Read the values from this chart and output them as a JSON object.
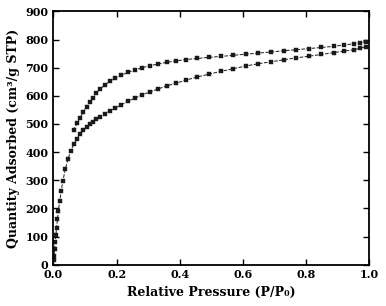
{
  "title": "",
  "xlabel": "Relative Pressure (P/P₀)",
  "ylabel": "Quantity Adsorbed (cm³/g STP)",
  "xlim": [
    0.0,
    1.0
  ],
  "ylim": [
    0,
    900
  ],
  "yticks": [
    0,
    100,
    200,
    300,
    400,
    500,
    600,
    700,
    800,
    900
  ],
  "xticks": [
    0.0,
    0.2,
    0.4,
    0.6,
    0.8,
    1.0
  ],
  "background_color": "#ffffff",
  "line_color": "#1a1a1a",
  "adsorption_x": [
    0.001,
    0.002,
    0.004,
    0.006,
    0.008,
    0.01,
    0.013,
    0.016,
    0.02,
    0.025,
    0.03,
    0.038,
    0.046,
    0.055,
    0.065,
    0.075,
    0.085,
    0.095,
    0.105,
    0.115,
    0.125,
    0.135,
    0.148,
    0.162,
    0.178,
    0.195,
    0.215,
    0.235,
    0.258,
    0.28,
    0.305,
    0.33,
    0.358,
    0.388,
    0.42,
    0.455,
    0.492,
    0.53,
    0.568,
    0.608,
    0.648,
    0.688,
    0.728,
    0.768,
    0.808,
    0.848,
    0.888,
    0.92,
    0.95,
    0.97,
    0.99
  ],
  "adsorption_y": [
    18,
    30,
    55,
    80,
    105,
    130,
    162,
    192,
    225,
    263,
    297,
    340,
    375,
    405,
    428,
    448,
    464,
    477,
    489,
    499,
    508,
    516,
    526,
    536,
    546,
    556,
    568,
    580,
    592,
    603,
    614,
    624,
    635,
    645,
    656,
    667,
    677,
    687,
    696,
    706,
    714,
    721,
    728,
    735,
    741,
    747,
    754,
    759,
    764,
    769,
    775
  ],
  "desorption_x": [
    0.99,
    0.97,
    0.95,
    0.92,
    0.888,
    0.848,
    0.808,
    0.768,
    0.728,
    0.688,
    0.648,
    0.608,
    0.568,
    0.53,
    0.492,
    0.455,
    0.42,
    0.388,
    0.358,
    0.33,
    0.305,
    0.28,
    0.258,
    0.235,
    0.215,
    0.195,
    0.178,
    0.162,
    0.148,
    0.135,
    0.125,
    0.115,
    0.105,
    0.095,
    0.085,
    0.075,
    0.065
  ],
  "desorption_y": [
    793,
    789,
    785,
    781,
    776,
    772,
    768,
    764,
    760,
    756,
    752,
    748,
    744,
    740,
    737,
    733,
    729,
    724,
    719,
    713,
    707,
    700,
    692,
    683,
    673,
    663,
    651,
    638,
    624,
    609,
    594,
    578,
    561,
    543,
    523,
    502,
    480
  ]
}
